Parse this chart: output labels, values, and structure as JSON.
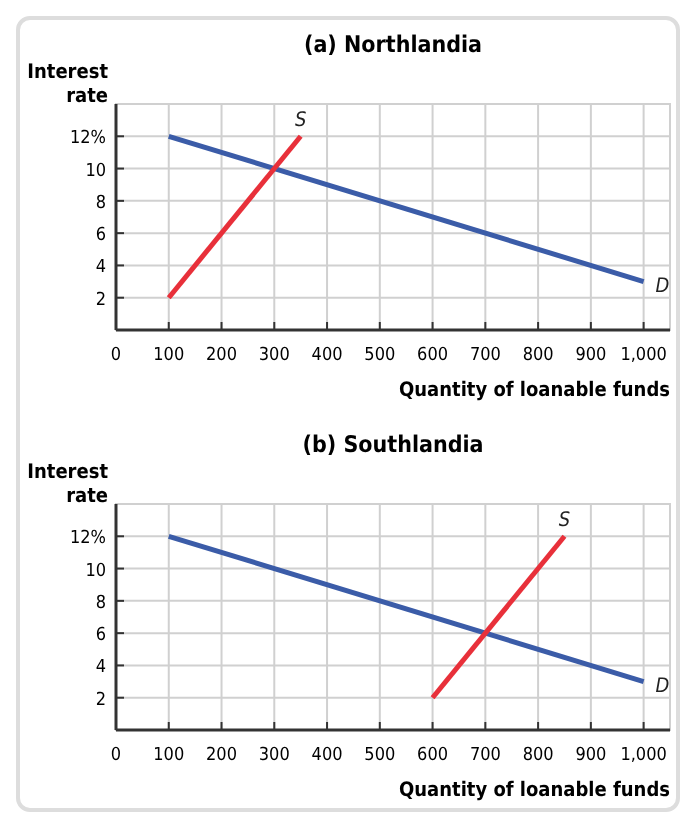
{
  "chart_data": [
    {
      "type": "line",
      "title": "(a) Northlandia",
      "xlabel": "Quantity of loanable funds",
      "ylabel": "Interest\nrate",
      "xlim": [
        0,
        1050
      ],
      "ylim": [
        0,
        14
      ],
      "xticks": [
        0,
        100,
        200,
        300,
        400,
        500,
        600,
        700,
        800,
        900,
        {
          "value": 1000,
          "label": "1,000"
        }
      ],
      "yticks": [
        2,
        4,
        6,
        8,
        10,
        {
          "value": 12,
          "label": "12%"
        }
      ],
      "grid": true,
      "marker": "none",
      "series": [
        {
          "name": "D",
          "color": "#3b5ca8",
          "x": [
            100,
            1000
          ],
          "values": [
            12,
            3
          ]
        },
        {
          "name": "S",
          "color": "#e8303a",
          "x": [
            100,
            350
          ],
          "values": [
            2,
            12
          ]
        }
      ]
    },
    {
      "type": "line",
      "title": "(b) Southlandia",
      "xlabel": "Quantity of loanable funds",
      "ylabel": "Interest\nrate",
      "xlim": [
        0,
        1050
      ],
      "ylim": [
        0,
        14
      ],
      "xticks": [
        0,
        100,
        200,
        300,
        400,
        500,
        600,
        700,
        800,
        900,
        {
          "value": 1000,
          "label": "1,000"
        }
      ],
      "yticks": [
        2,
        4,
        6,
        8,
        10,
        {
          "value": 12,
          "label": "12%"
        }
      ],
      "grid": true,
      "marker": "none",
      "series": [
        {
          "name": "D",
          "color": "#3b5ca8",
          "x": [
            100,
            1000
          ],
          "values": [
            12,
            3
          ]
        },
        {
          "name": "S",
          "color": "#e8303a",
          "x": [
            600,
            850
          ],
          "values": [
            2,
            12
          ]
        }
      ]
    }
  ]
}
